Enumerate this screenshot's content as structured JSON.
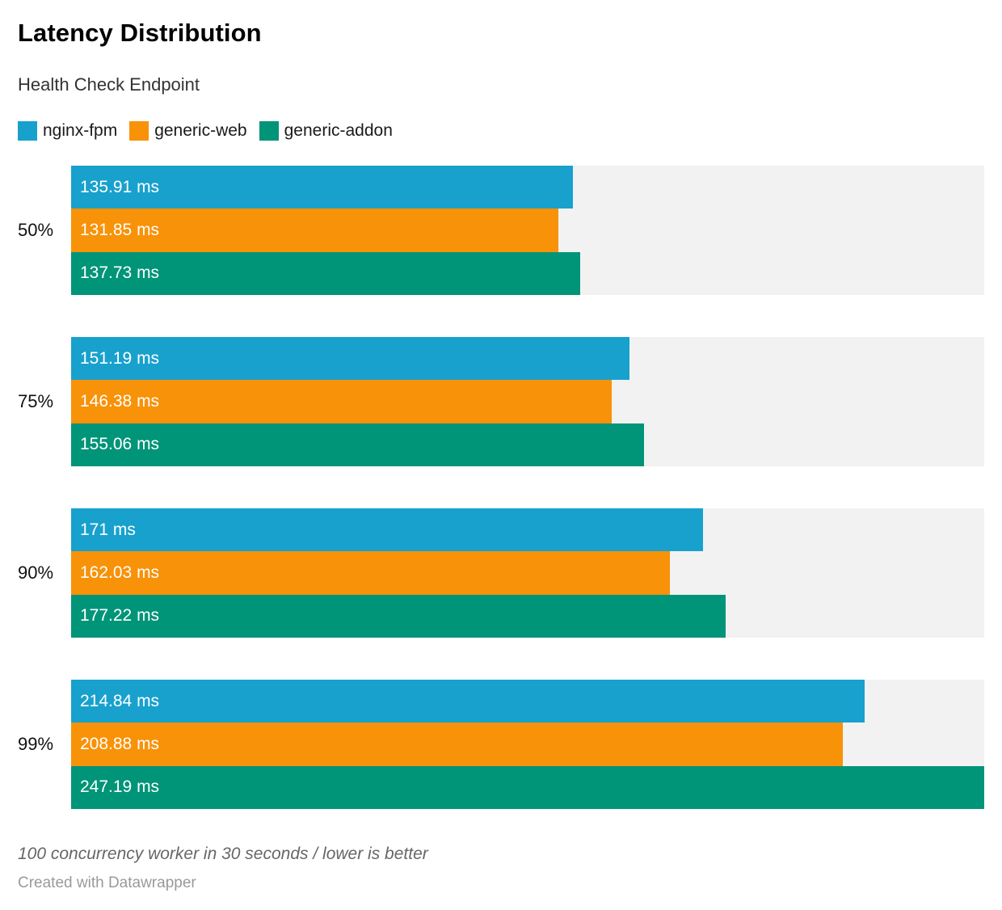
{
  "header": {
    "title": "Latency Distribution",
    "subtitle": "Health Check Endpoint"
  },
  "footer": {
    "note": "100 concurrency worker in 30 seconds / lower is better",
    "attribution": "Created with Datawrapper"
  },
  "colors": {
    "background": "#ffffff",
    "track": "#f2f2f2",
    "value_label": "#ffffff"
  },
  "chart_data": {
    "type": "bar",
    "orientation": "horizontal",
    "title": "Latency Distribution",
    "subtitle": "Health Check Endpoint",
    "categories": [
      "50%",
      "75%",
      "90%",
      "99%"
    ],
    "series": [
      {
        "name": "nginx-fpm",
        "color": "#18a1cd",
        "values": [
          135.91,
          151.19,
          171,
          214.84
        ],
        "labels": [
          "135.91 ms",
          "151.19 ms",
          "171 ms",
          "214.84 ms"
        ]
      },
      {
        "name": "generic-web",
        "color": "#f89208",
        "values": [
          131.85,
          146.38,
          162.03,
          208.88
        ],
        "labels": [
          "131.85 ms",
          "146.38 ms",
          "162.03 ms",
          "208.88 ms"
        ]
      },
      {
        "name": "generic-addon",
        "color": "#009478",
        "values": [
          137.73,
          155.06,
          177.22,
          247.19
        ],
        "labels": [
          "137.73 ms",
          "155.06 ms",
          "177.22 ms",
          "247.19 ms"
        ]
      }
    ],
    "unit": "ms",
    "xlim": [
      0,
      247.19
    ],
    "legend_position": "top",
    "grid": false,
    "note": "100 concurrency worker in 30 seconds / lower is better"
  }
}
